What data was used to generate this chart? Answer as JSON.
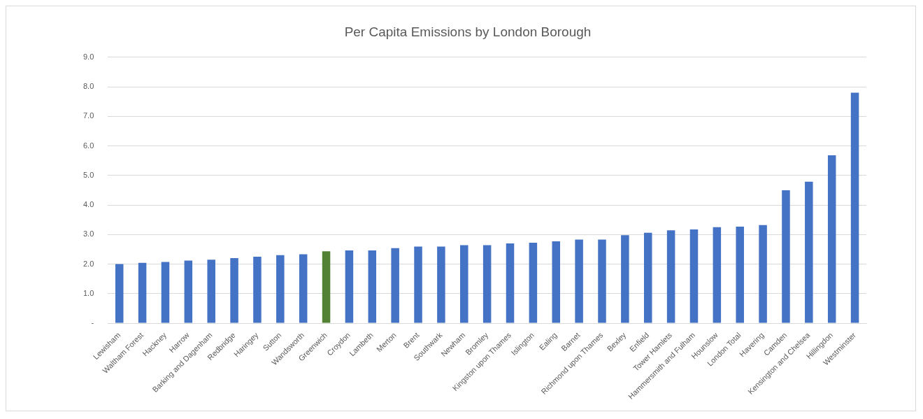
{
  "chart_data": {
    "type": "bar",
    "title": "Per Capita Emissions by London Borough",
    "categories": [
      "Lewisham",
      "Waltham Forest",
      "Hackney",
      "Harrow",
      "Barking and Dagenham",
      "Redbridge",
      "Haringey",
      "Sutton",
      "Wandsworth",
      "Greenwich",
      "Croydon",
      "Lambeth",
      "Merton",
      "Brent",
      "Southwark",
      "Newham",
      "Bromley",
      "Kingston upon Thames",
      "Islington",
      "Ealing",
      "Barnet",
      "Richmond upon Thames",
      "Bexley",
      "Enfield",
      "Tower Hamlets",
      "Hammersmith and Fulham",
      "Hounslow",
      "London Total",
      "Havering",
      "Camden",
      "Kensington and Chelsea",
      "Hillingdon",
      "Westminster"
    ],
    "values": [
      2.0,
      2.04,
      2.07,
      2.12,
      2.15,
      2.2,
      2.25,
      2.3,
      2.33,
      2.43,
      2.46,
      2.46,
      2.54,
      2.59,
      2.59,
      2.64,
      2.64,
      2.7,
      2.72,
      2.77,
      2.83,
      2.83,
      2.98,
      3.06,
      3.14,
      3.17,
      3.25,
      3.27,
      3.32,
      4.5,
      4.79,
      5.68,
      7.8
    ],
    "colors": [
      "#4472c4",
      "#4472c4",
      "#4472c4",
      "#4472c4",
      "#4472c4",
      "#4472c4",
      "#4472c4",
      "#4472c4",
      "#4472c4",
      "#548235",
      "#4472c4",
      "#4472c4",
      "#4472c4",
      "#4472c4",
      "#4472c4",
      "#4472c4",
      "#4472c4",
      "#4472c4",
      "#4472c4",
      "#4472c4",
      "#4472c4",
      "#4472c4",
      "#4472c4",
      "#4472c4",
      "#4472c4",
      "#4472c4",
      "#4472c4",
      "#4472c4",
      "#4472c4",
      "#4472c4",
      "#4472c4",
      "#4472c4",
      "#4472c4"
    ],
    "ylim": [
      0,
      9
    ],
    "yticks": [
      {
        "value": 0,
        "label": "-"
      },
      {
        "value": 1,
        "label": "1.0"
      },
      {
        "value": 2,
        "label": "2.0"
      },
      {
        "value": 3,
        "label": "3.0"
      },
      {
        "value": 4,
        "label": "4.0"
      },
      {
        "value": 5,
        "label": "5.0"
      },
      {
        "value": 6,
        "label": "6.0"
      },
      {
        "value": 7,
        "label": "7.0"
      },
      {
        "value": 8,
        "label": "8.0"
      },
      {
        "value": 9,
        "label": "9.0"
      }
    ],
    "grid": "y",
    "legend": false
  }
}
